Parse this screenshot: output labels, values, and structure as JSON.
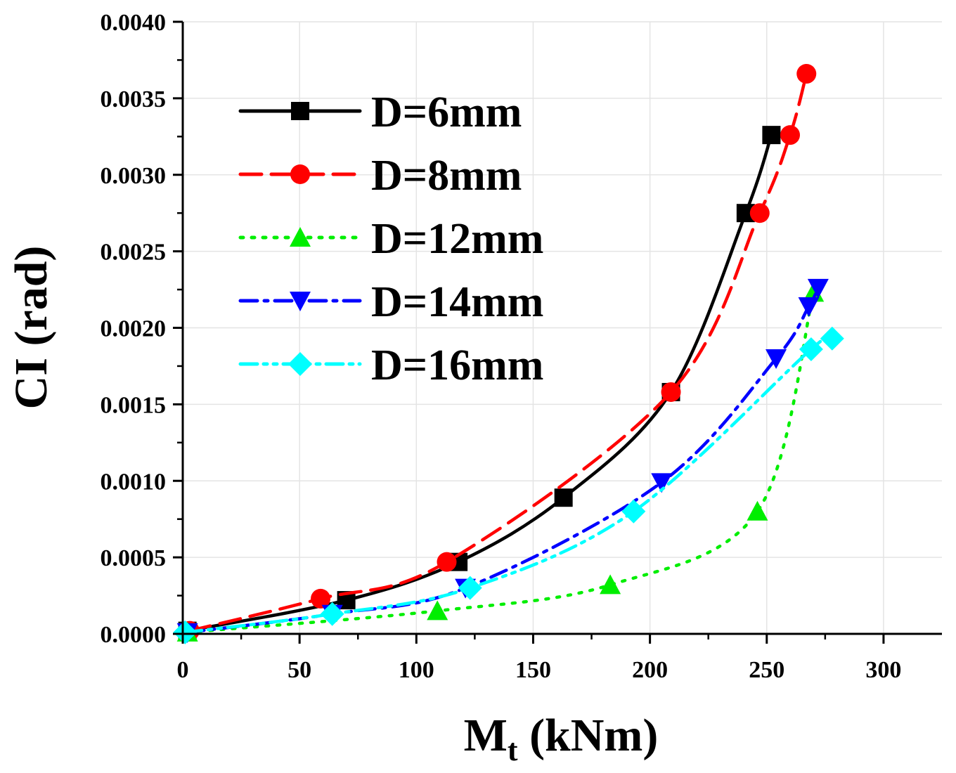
{
  "chart_data": {
    "type": "line",
    "title": "",
    "xlabel": "M",
    "xlabel_sub": "t",
    "xlabel_unit": " (kNm)",
    "ylabel": "CI (rad)",
    "xlim": [
      0,
      325
    ],
    "ylim": [
      0,
      0.004
    ],
    "grid": true,
    "legend_position": "top-left",
    "x_ticks": [
      0,
      50,
      100,
      150,
      200,
      250,
      300
    ],
    "x_tick_labels": [
      "0",
      "50",
      "100",
      "150",
      "200",
      "250",
      "300"
    ],
    "y_ticks": [
      0,
      0.0005,
      0.001,
      0.0015,
      0.002,
      0.0025,
      0.003,
      0.0035,
      0.004
    ],
    "y_tick_labels": [
      "0.0000",
      "0.0005",
      "0.0010",
      "0.0015",
      "0.0020",
      "0.0025",
      "0.0030",
      "0.0035",
      "0.0040"
    ],
    "series": [
      {
        "name": "D=6mm",
        "color": "#000000",
        "marker": "square",
        "dash": "solid",
        "x": [
          2,
          70,
          118,
          163,
          209,
          241,
          252
        ],
        "y": [
          2e-05,
          0.00022,
          0.00047,
          0.00089,
          0.00158,
          0.00275,
          0.00326
        ]
      },
      {
        "name": "D=8mm",
        "color": "#ff0000",
        "marker": "circle",
        "dash": "dash",
        "x": [
          3,
          59,
          113,
          209,
          247,
          260,
          267
        ],
        "y": [
          2e-05,
          0.00023,
          0.00047,
          0.00158,
          0.00275,
          0.00326,
          0.00366
        ]
      },
      {
        "name": "D=12mm",
        "color": "#00ee00",
        "marker": "triangle-up",
        "dash": "dot",
        "x": [
          2,
          109,
          183,
          246,
          270
        ],
        "y": [
          1e-05,
          0.00015,
          0.00032,
          0.0008,
          0.00223
        ]
      },
      {
        "name": "D=14mm",
        "color": "#0000ff",
        "marker": "triangle-down",
        "dash": "dashdot",
        "x": [
          2,
          64,
          121,
          205,
          254,
          268,
          272
        ],
        "y": [
          1e-05,
          0.00013,
          0.0003,
          0.00099,
          0.0018,
          0.00214,
          0.00226
        ]
      },
      {
        "name": "D=16mm",
        "color": "#00ffff",
        "marker": "diamond",
        "dash": "dashdotdot",
        "x": [
          1,
          64,
          123,
          193,
          269,
          278
        ],
        "y": [
          1e-05,
          0.00013,
          0.0003,
          0.0008,
          0.00186,
          0.00193
        ]
      }
    ]
  }
}
